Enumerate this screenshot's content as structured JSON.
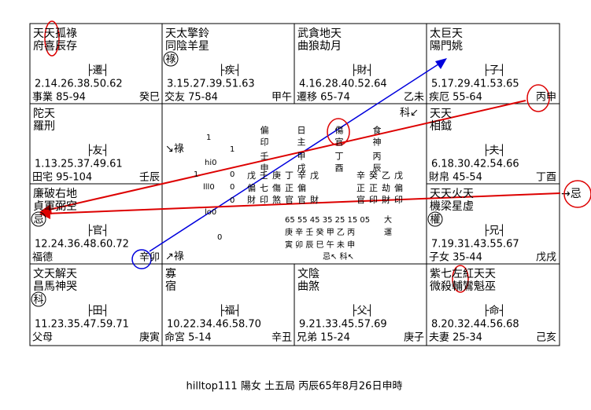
{
  "palaces": [
    {
      "stars": [
        "天天孤祿",
        "府喜辰存"
      ],
      "branch": "├遷┤",
      "ages": "2.14.26.38.50.62",
      "palace": "事業 85-94",
      "stem": "癸巳"
    },
    {
      "stars": [
        "天太擎鈴",
        "同陰羊星"
      ],
      "mark": "祿",
      "branch": "├疾┤",
      "ages": "3.15.27.39.51.63",
      "palace": "交友 75-84",
      "stem": "甲午"
    },
    {
      "stars": [
        "武貪地天",
        "曲狼劫月"
      ],
      "branch": "├財┤",
      "ages": "4.16.28.40.52.64",
      "palace": "遷移 65-74",
      "stem": "乙未"
    },
    {
      "stars": [
        "太巨天",
        "陽門姚"
      ],
      "branch": "├子┤",
      "ages": "5.17.29.41.53.65",
      "palace": "疾厄 55-64",
      "stem": "丙申"
    },
    {
      "stars": [
        "陀天",
        "羅刑"
      ],
      "branch": "├友┤",
      "ages": "1.13.25.37.49.61",
      "palace": "田宅 95-104",
      "stem": "壬辰"
    },
    {
      "stars": [
        "天天",
        "相鉞"
      ],
      "branch": "├夫┤",
      "ages": "6.18.30.42.54.66",
      "palace": "財帛 45-54",
      "stem": "丁酉"
    },
    {
      "stars": [
        "廉破右地",
        "貞軍弼空"
      ],
      "mark": "忌",
      "branch": "├官┤",
      "ages": "12.24.36.48.60.72",
      "palace": "福德",
      "stem": "辛卯"
    },
    {
      "stars": [
        "天天火天",
        "機梁星虛"
      ],
      "mark": "權",
      "branch": "├兄┤",
      "ages": "7.19.31.43.55.67",
      "palace": "子女 35-44",
      "stem": "戊戌"
    },
    {
      "stars": [
        "文天解天",
        "昌馬神哭"
      ],
      "mark": "科",
      "branch": "├田┤",
      "ages": "11.23.35.47.59.71",
      "palace": "父母",
      "stem": "庚寅"
    },
    {
      "stars": [
        "寡",
        "宿"
      ],
      "branch": "├福┤",
      "ages": "10.22.34.46.58.70",
      "palace": "命宮 5-14",
      "stem": "辛丑"
    },
    {
      "stars": [
        "文陰",
        "曲煞"
      ],
      "branch": "├父┤",
      "ages": "9.21.33.45.57.69",
      "palace": "兄弟 15-24",
      "stem": "庚子"
    },
    {
      "stars": [
        "紫七左紅天天",
        "微殺輔鸞魁巫"
      ],
      "branch": "├命┤",
      "ages": "8.20.32.44.56.68",
      "palace": "夫妻 25-34",
      "stem": "己亥"
    }
  ],
  "center": {
    "pillars": [
      "偏印",
      "日主",
      "傷官",
      "食神",
      "壬申",
      "甲戌",
      "丁酉",
      "丙辰"
    ],
    "hidden": [
      "戊壬庚丁辛戊",
      "偏七傷正偏",
      "財印煞官官財",
      "辛癸乙戊",
      "正正劫偏",
      "官印財印"
    ],
    "numbers": [
      "1",
      "1",
      "hi0",
      "1",
      "0",
      "lll0",
      "0",
      "lo0",
      "0",
      "0"
    ],
    "luck": [
      "65 55 45 35 25 15 05",
      "大",
      "庚 辛 壬 癸 甲 乙 丙",
      "運",
      "寅 卯 辰 巳 午 未 申",
      "忌↖ 科↖"
    ],
    "notes": [
      "↘祿",
      "↗祿",
      "科↙"
    ]
  },
  "right_note": "→忌",
  "footer": "hilltop111  陽女 土五局 丙辰65年8月26日申時"
}
